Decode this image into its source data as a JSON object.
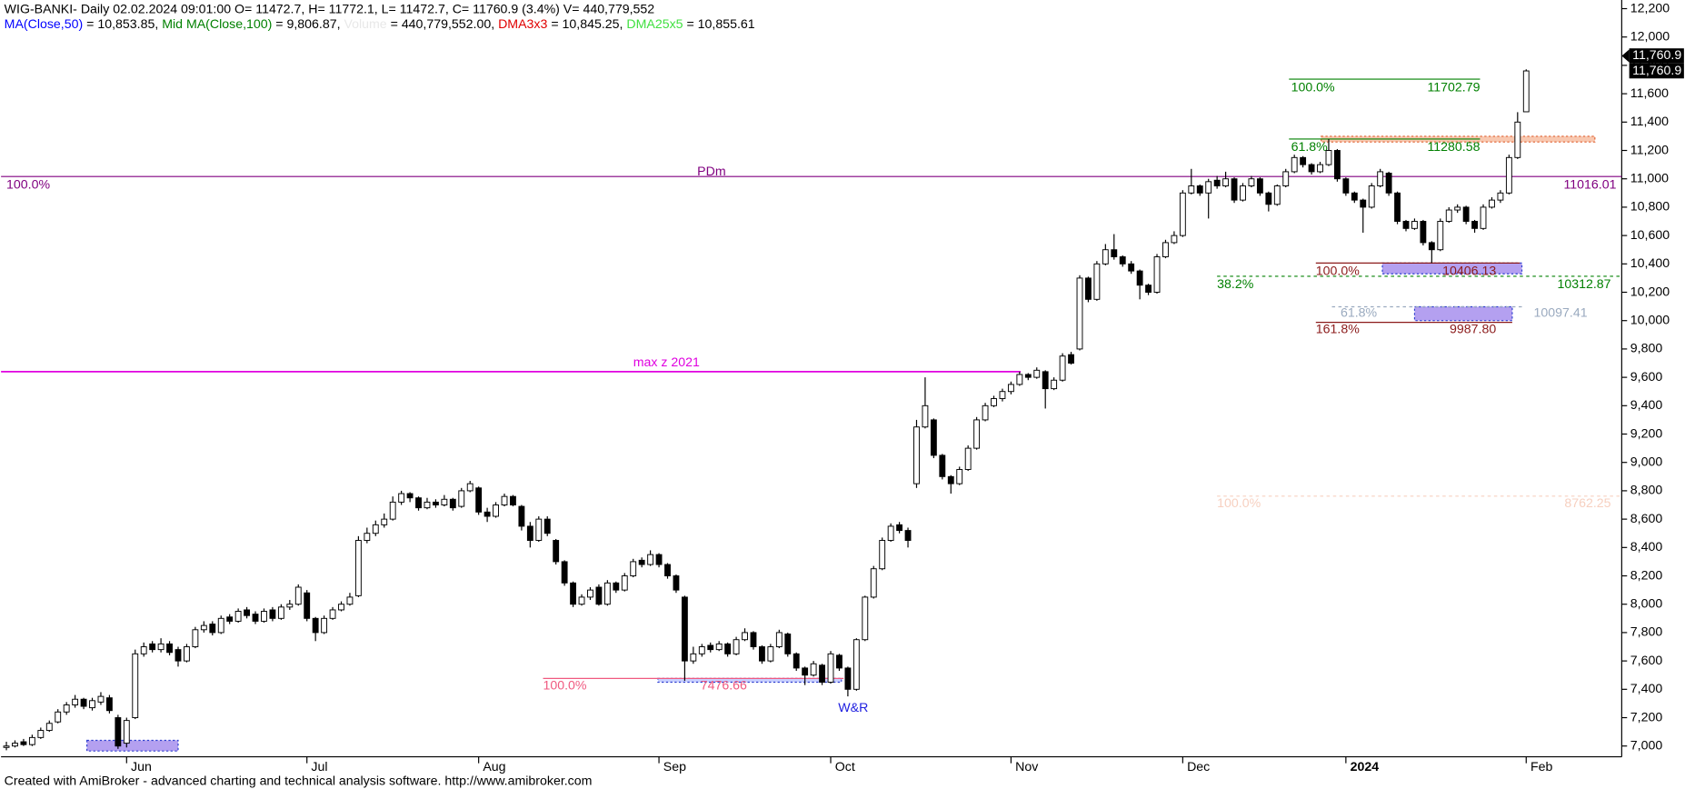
{
  "chart_data": {
    "type": "candlestick",
    "title": "WIG-BANKI- Daily 02.02.2024 09:01:00 O= 11472.7, H= 11772.1, L= 11472.7, C= 11760.9 (3.4%) V= 440,779,552",
    "indicators": [
      {
        "text": "MA(Close,50)",
        "color": "#0000ff"
      },
      {
        "text": " = 10,853.85, ",
        "color": "#000000"
      },
      {
        "text": "Mid MA(Close,100)",
        "color": "#008000"
      },
      {
        "text": " = 9,806.87, ",
        "color": "#000000"
      },
      {
        "text": "Volume",
        "color": "#e8e8e8"
      },
      {
        "text": " = 440,779,552.00, ",
        "color": "#000000"
      },
      {
        "text": "DMA3x3",
        "color": "#e00000"
      },
      {
        "text": " = 10,845.25, ",
        "color": "#000000"
      },
      {
        "text": "DMA25x5",
        "color": "#40e040"
      },
      {
        "text": " = 10,855.61",
        "color": "#000000"
      }
    ],
    "footer": "Created with AmiBroker - advanced charting and technical analysis software. http://www.amibroker.com",
    "up_color": "#ffffff",
    "down_color": "#000000",
    "ylim": [
      6924,
      12261
    ],
    "yticks": [
      {
        "value": 7000,
        "label": "7,000"
      },
      {
        "value": 7200,
        "label": "7,200"
      },
      {
        "value": 7400,
        "label": "7,400"
      },
      {
        "value": 7600,
        "label": "7,600"
      },
      {
        "value": 7800,
        "label": "7,800"
      },
      {
        "value": 8000,
        "label": "8,000"
      },
      {
        "value": 8200,
        "label": "8,200"
      },
      {
        "value": 8400,
        "label": "8,400"
      },
      {
        "value": 8600,
        "label": "8,600"
      },
      {
        "value": 8800,
        "label": "8,800"
      },
      {
        "value": 9000,
        "label": "9,000"
      },
      {
        "value": 9200,
        "label": "9,200"
      },
      {
        "value": 9400,
        "label": "9,400"
      },
      {
        "value": 9600,
        "label": "9,600"
      },
      {
        "value": 9800,
        "label": "9,800"
      },
      {
        "value": 10000,
        "label": "10,000"
      },
      {
        "value": 10200,
        "label": "10,200"
      },
      {
        "value": 10400,
        "label": "10,400"
      },
      {
        "value": 10600,
        "label": "10,600"
      },
      {
        "value": 10800,
        "label": "10,800"
      },
      {
        "value": 11000,
        "label": "11,000"
      },
      {
        "value": 11200,
        "label": "11,200"
      },
      {
        "value": 11400,
        "label": "11,400"
      },
      {
        "value": 11600,
        "label": "11,600"
      },
      {
        "value": 11800,
        "label": "11,800"
      },
      {
        "value": 12000,
        "label": "12,000"
      },
      {
        "value": 12200,
        "label": "12,200"
      }
    ],
    "xticks": [
      {
        "value": 14,
        "label": "Jun"
      },
      {
        "value": 35,
        "label": "Jul"
      },
      {
        "value": 55,
        "label": "Aug"
      },
      {
        "value": 76,
        "label": "Sep"
      },
      {
        "value": 96,
        "label": "Oct"
      },
      {
        "value": 117,
        "label": "Nov"
      },
      {
        "value": 137,
        "label": "Dec"
      },
      {
        "value": 156,
        "label": "2024"
      },
      {
        "value": 177,
        "label": "Feb"
      }
    ],
    "last_price_label": "11,760.9",
    "ohlc": [
      [
        6990,
        7030,
        6970,
        7000
      ],
      [
        7000,
        7040,
        6990,
        7020
      ],
      [
        7030,
        7050,
        7000,
        7010
      ],
      [
        7010,
        7080,
        7000,
        7060
      ],
      [
        7060,
        7130,
        7050,
        7110
      ],
      [
        7110,
        7180,
        7100,
        7160
      ],
      [
        7170,
        7260,
        7160,
        7240
      ],
      [
        7240,
        7310,
        7220,
        7290
      ],
      [
        7290,
        7360,
        7270,
        7330
      ],
      [
        7330,
        7340,
        7260,
        7280
      ],
      [
        7270,
        7340,
        7250,
        7320
      ],
      [
        7310,
        7380,
        7290,
        7350
      ],
      [
        7340,
        7360,
        7230,
        7250
      ],
      [
        7200,
        7220,
        6980,
        7000
      ],
      [
        7020,
        7200,
        6990,
        7180
      ],
      [
        7200,
        7680,
        7190,
        7650
      ],
      [
        7650,
        7730,
        7630,
        7700
      ],
      [
        7720,
        7740,
        7660,
        7680
      ],
      [
        7680,
        7760,
        7660,
        7720
      ],
      [
        7720,
        7740,
        7640,
        7660
      ],
      [
        7680,
        7700,
        7560,
        7600
      ],
      [
        7600,
        7720,
        7590,
        7700
      ],
      [
        7700,
        7840,
        7690,
        7820
      ],
      [
        7820,
        7880,
        7800,
        7850
      ],
      [
        7860,
        7880,
        7780,
        7800
      ],
      [
        7800,
        7920,
        7790,
        7900
      ],
      [
        7910,
        7930,
        7860,
        7880
      ],
      [
        7880,
        7970,
        7870,
        7950
      ],
      [
        7960,
        7980,
        7900,
        7920
      ],
      [
        7930,
        7950,
        7860,
        7880
      ],
      [
        7880,
        7970,
        7870,
        7950
      ],
      [
        7960,
        7980,
        7880,
        7900
      ],
      [
        7900,
        8000,
        7890,
        7980
      ],
      [
        7980,
        8030,
        7960,
        8000
      ],
      [
        8000,
        8140,
        7990,
        8120
      ],
      [
        8080,
        8100,
        7880,
        7900
      ],
      [
        7900,
        7910,
        7740,
        7800
      ],
      [
        7800,
        7920,
        7790,
        7900
      ],
      [
        7900,
        7980,
        7890,
        7960
      ],
      [
        7960,
        8020,
        7950,
        8000
      ],
      [
        8000,
        8080,
        7990,
        8050
      ],
      [
        8060,
        8480,
        8050,
        8450
      ],
      [
        8450,
        8540,
        8430,
        8500
      ],
      [
        8500,
        8590,
        8480,
        8560
      ],
      [
        8560,
        8640,
        8540,
        8600
      ],
      [
        8600,
        8760,
        8590,
        8720
      ],
      [
        8720,
        8800,
        8700,
        8780
      ],
      [
        8780,
        8790,
        8720,
        8750
      ],
      [
        8750,
        8760,
        8660,
        8680
      ],
      [
        8680,
        8750,
        8670,
        8720
      ],
      [
        8720,
        8740,
        8680,
        8700
      ],
      [
        8700,
        8770,
        8690,
        8740
      ],
      [
        8740,
        8750,
        8660,
        8680
      ],
      [
        8690,
        8820,
        8680,
        8800
      ],
      [
        8800,
        8870,
        8790,
        8850
      ],
      [
        8820,
        8830,
        8630,
        8650
      ],
      [
        8650,
        8680,
        8580,
        8620
      ],
      [
        8620,
        8720,
        8610,
        8700
      ],
      [
        8700,
        8780,
        8690,
        8760
      ],
      [
        8760,
        8770,
        8690,
        8700
      ],
      [
        8690,
        8700,
        8520,
        8550
      ],
      [
        8550,
        8580,
        8400,
        8450
      ],
      [
        8450,
        8620,
        8440,
        8600
      ],
      [
        8600,
        8620,
        8480,
        8500
      ],
      [
        8450,
        8460,
        8280,
        8300
      ],
      [
        8300,
        8310,
        8130,
        8150
      ],
      [
        8150,
        8160,
        7980,
        8000
      ],
      [
        8000,
        8070,
        7990,
        8050
      ],
      [
        8050,
        8120,
        8030,
        8100
      ],
      [
        8120,
        8140,
        7990,
        8000
      ],
      [
        8000,
        8170,
        7990,
        8150
      ],
      [
        8150,
        8160,
        8080,
        8100
      ],
      [
        8100,
        8220,
        8090,
        8200
      ],
      [
        8200,
        8320,
        8190,
        8300
      ],
      [
        8310,
        8330,
        8260,
        8280
      ],
      [
        8280,
        8380,
        8270,
        8350
      ],
      [
        8350,
        8360,
        8260,
        8280
      ],
      [
        8280,
        8290,
        8180,
        8200
      ],
      [
        8200,
        8210,
        8080,
        8100
      ],
      [
        8050,
        8060,
        7460,
        7600
      ],
      [
        7600,
        7700,
        7580,
        7650
      ],
      [
        7650,
        7720,
        7630,
        7700
      ],
      [
        7710,
        7730,
        7660,
        7680
      ],
      [
        7680,
        7740,
        7670,
        7720
      ],
      [
        7720,
        7730,
        7630,
        7650
      ],
      [
        7650,
        7770,
        7640,
        7750
      ],
      [
        7750,
        7830,
        7740,
        7800
      ],
      [
        7800,
        7810,
        7680,
        7700
      ],
      [
        7700,
        7710,
        7580,
        7600
      ],
      [
        7600,
        7720,
        7590,
        7700
      ],
      [
        7700,
        7820,
        7690,
        7800
      ],
      [
        7790,
        7800,
        7630,
        7650
      ],
      [
        7650,
        7660,
        7530,
        7550
      ],
      [
        7550,
        7560,
        7430,
        7500
      ],
      [
        7500,
        7600,
        7490,
        7580
      ],
      [
        7570,
        7580,
        7430,
        7450
      ],
      [
        7450,
        7670,
        7440,
        7650
      ],
      [
        7640,
        7650,
        7530,
        7550
      ],
      [
        7550,
        7560,
        7350,
        7400
      ],
      [
        7400,
        7760,
        7390,
        7750
      ],
      [
        7750,
        8060,
        7740,
        8050
      ],
      [
        8050,
        8270,
        8040,
        8250
      ],
      [
        8250,
        8470,
        8240,
        8450
      ],
      [
        8450,
        8570,
        8440,
        8550
      ],
      [
        8560,
        8580,
        8500,
        8520
      ],
      [
        8520,
        8540,
        8400,
        8450
      ],
      [
        8850,
        9300,
        8820,
        9250
      ],
      [
        9250,
        9600,
        9240,
        9400
      ],
      [
        9300,
        9310,
        9030,
        9050
      ],
      [
        9050,
        9060,
        8880,
        8900
      ],
      [
        8900,
        8910,
        8780,
        8850
      ],
      [
        8850,
        8970,
        8840,
        8950
      ],
      [
        8950,
        9120,
        8940,
        9100
      ],
      [
        9100,
        9320,
        9090,
        9300
      ],
      [
        9300,
        9420,
        9290,
        9400
      ],
      [
        9400,
        9470,
        9390,
        9450
      ],
      [
        9450,
        9520,
        9430,
        9500
      ],
      [
        9500,
        9570,
        9480,
        9550
      ],
      [
        9550,
        9640,
        9540,
        9620
      ],
      [
        9620,
        9630,
        9580,
        9600
      ],
      [
        9600,
        9670,
        9590,
        9650
      ],
      [
        9640,
        9650,
        9380,
        9520
      ],
      [
        9520,
        9600,
        9510,
        9580
      ],
      [
        9580,
        9770,
        9570,
        9750
      ],
      [
        9760,
        9780,
        9690,
        9700
      ],
      [
        9800,
        10320,
        9790,
        10300
      ],
      [
        10300,
        10310,
        10130,
        10150
      ],
      [
        10150,
        10420,
        10140,
        10400
      ],
      [
        10400,
        10540,
        10390,
        10500
      ],
      [
        10500,
        10610,
        10430,
        10450
      ],
      [
        10450,
        10460,
        10380,
        10400
      ],
      [
        10400,
        10420,
        10330,
        10350
      ],
      [
        10350,
        10360,
        10150,
        10250
      ],
      [
        10250,
        10260,
        10180,
        10200
      ],
      [
        10200,
        10470,
        10190,
        10450
      ],
      [
        10450,
        10570,
        10440,
        10550
      ],
      [
        10550,
        10630,
        10540,
        10600
      ],
      [
        10600,
        10920,
        10590,
        10900
      ],
      [
        10900,
        11070,
        10890,
        10950
      ],
      [
        10950,
        10960,
        10880,
        10900
      ],
      [
        10900,
        11000,
        10720,
        10980
      ],
      [
        10990,
        11020,
        10930,
        10950
      ],
      [
        10950,
        11050,
        10940,
        11000
      ],
      [
        11000,
        11010,
        10830,
        10850
      ],
      [
        10850,
        10970,
        10840,
        10950
      ],
      [
        10950,
        11020,
        10940,
        11000
      ],
      [
        11000,
        11010,
        10880,
        10900
      ],
      [
        10900,
        10910,
        10770,
        10820
      ],
      [
        10820,
        10960,
        10810,
        10950
      ],
      [
        10950,
        11070,
        10940,
        11050
      ],
      [
        11050,
        11170,
        11040,
        11150
      ],
      [
        11150,
        11160,
        11080,
        11100
      ],
      [
        11100,
        11110,
        11030,
        11050
      ],
      [
        11050,
        11120,
        11040,
        11100
      ],
      [
        11100,
        11280,
        11090,
        11200
      ],
      [
        11200,
        11210,
        10980,
        11000
      ],
      [
        11000,
        11010,
        10880,
        10900
      ],
      [
        10900,
        10910,
        10830,
        10850
      ],
      [
        10850,
        10860,
        10620,
        10800
      ],
      [
        10800,
        10970,
        10790,
        10950
      ],
      [
        10950,
        11070,
        10940,
        11050
      ],
      [
        11040,
        11050,
        10880,
        10900
      ],
      [
        10900,
        10910,
        10680,
        10700
      ],
      [
        10700,
        10710,
        10630,
        10650
      ],
      [
        10650,
        10720,
        10640,
        10700
      ],
      [
        10700,
        10710,
        10530,
        10550
      ],
      [
        10550,
        10560,
        10406.13,
        10500
      ],
      [
        10500,
        10720,
        10490,
        10700
      ],
      [
        10700,
        10800,
        10690,
        10780
      ],
      [
        10780,
        10820,
        10760,
        10800
      ],
      [
        10800,
        10810,
        10680,
        10700
      ],
      [
        10700,
        10710,
        10620,
        10650
      ],
      [
        10650,
        10820,
        10640,
        10800
      ],
      [
        10800,
        10870,
        10790,
        10850
      ],
      [
        10850,
        10920,
        10830,
        10900
      ],
      [
        10900,
        11170,
        10890,
        11150
      ],
      [
        11150,
        11470,
        11140,
        11400
      ],
      [
        11472.7,
        11772.1,
        11472.7,
        11760.9
      ]
    ],
    "levels": [
      {
        "value": 11016.01,
        "color": "#800080",
        "left_label": "100.0%",
        "mid_label": "PDm"
      },
      {
        "value": 11702.79,
        "color": "#008000",
        "left_label": "100.0%"
      },
      {
        "value": 11280.58,
        "color": "#008000",
        "left_label": "61.8%"
      },
      {
        "value": 10312.87,
        "color": "#008000",
        "left_label": "38.2%",
        "dashed": true
      },
      {
        "value": 10406.13,
        "color": "#8b1a1a",
        "left_label": "100.0%"
      },
      {
        "value": 10097.41,
        "color": "#9aaabf",
        "left_label": "61.8%",
        "dashed": true
      },
      {
        "value": 9987.8,
        "value_label": "9987.80",
        "color": "#8b1a1a",
        "left_label": "161.8%"
      },
      {
        "value": 8762.25,
        "color": "#f7d0c0",
        "left_label": "100.0%",
        "dashed": true
      },
      {
        "value": 7476.66,
        "color": "#f05a80",
        "left_label": "100.0%"
      }
    ],
    "max_line": {
      "value": 9640,
      "label": "max z 2021",
      "color": "#e000e0"
    },
    "zones": [
      {
        "low": 10330,
        "high": 10406.13,
        "color": "#b4a0f0"
      },
      {
        "low": 10000,
        "high": 10097.41,
        "color": "#b4a0f0"
      },
      {
        "low": 11260,
        "high": 11300,
        "color": "#f8c8b0"
      },
      {
        "low": 7450,
        "high": 7476.66,
        "color": "#c8d0ff"
      },
      {
        "low": 6965,
        "high": 7040,
        "color": "#b4a0f0"
      }
    ],
    "notes": [
      "W&R"
    ]
  }
}
